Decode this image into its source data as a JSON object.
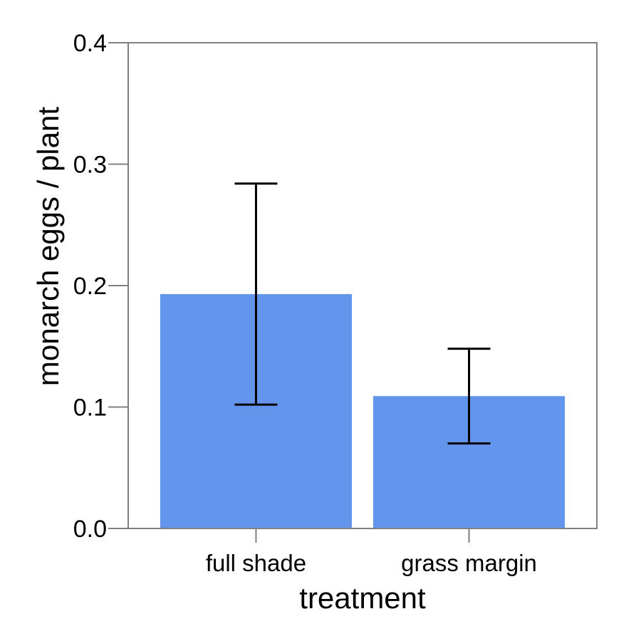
{
  "chart_data": {
    "type": "bar",
    "xlabel": "treatment",
    "ylabel": "monarch eggs / plant",
    "categories": [
      "full shade",
      "grass margin"
    ],
    "values": [
      0.193,
      0.109
    ],
    "error_bars": {
      "lower": [
        0.102,
        0.07
      ],
      "upper": [
        0.284,
        0.148
      ]
    },
    "ylim": [
      0,
      0.4
    ],
    "yticks": [
      "0.0",
      "0.1",
      "0.2",
      "0.3",
      "0.4"
    ],
    "ytick_values": [
      0,
      0.1,
      0.2,
      0.3,
      0.4
    ],
    "grid": false,
    "legend": "none",
    "colors": {
      "bar": "#6495ED",
      "frame": "#808080",
      "error_bar": "#000000"
    }
  }
}
